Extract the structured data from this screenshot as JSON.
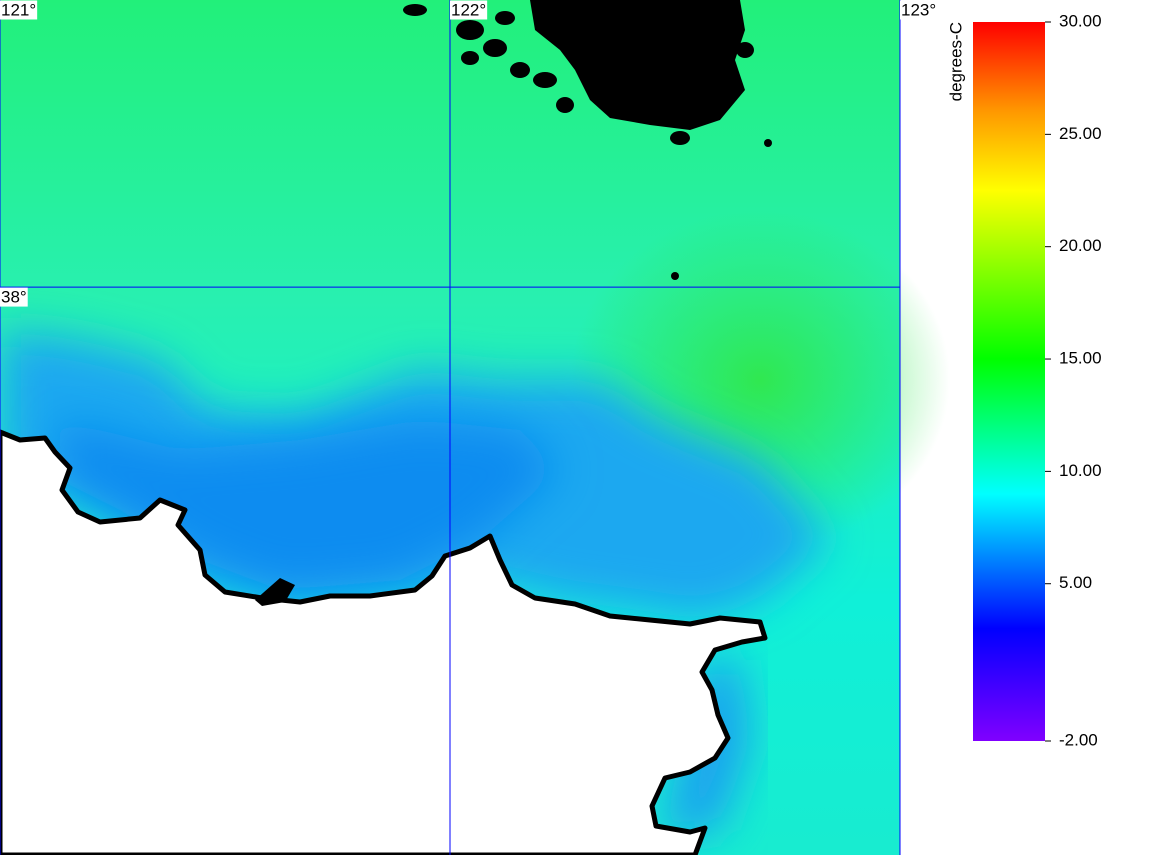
{
  "map": {
    "lonlim": [
      121,
      123
    ],
    "latlim": [
      38.638,
      36.738
    ],
    "lon_ticks": [
      {
        "value": 121,
        "label": "121°"
      },
      {
        "value": 122,
        "label": "122°"
      },
      {
        "value": 123,
        "label": "123°"
      }
    ],
    "lat_ticks": [
      {
        "value": 38,
        "label": "38°"
      }
    ],
    "grid_color": "#0000ff"
  },
  "colorbar": {
    "label": "degrees-C",
    "lim": [
      -2,
      30
    ],
    "ticks": [
      {
        "value": 30,
        "label": "30.00"
      },
      {
        "value": 25,
        "label": "25.00"
      },
      {
        "value": 20,
        "label": "20.00"
      },
      {
        "value": 15,
        "label": "15.00"
      },
      {
        "value": 10,
        "label": "10.00"
      },
      {
        "value": 5,
        "label": "5.00"
      },
      {
        "value": -2,
        "label": "-2.00"
      }
    ],
    "stops": [
      {
        "value": -2,
        "color": "#8000ff"
      },
      {
        "value": 3,
        "color": "#0000ff"
      },
      {
        "value": 9,
        "color": "#00ffff"
      },
      {
        "value": 15,
        "color": "#00ff00"
      },
      {
        "value": 22.5,
        "color": "#ffff00"
      },
      {
        "value": 26,
        "color": "#ff9900"
      },
      {
        "value": 30,
        "color": "#ff0000"
      }
    ]
  }
}
